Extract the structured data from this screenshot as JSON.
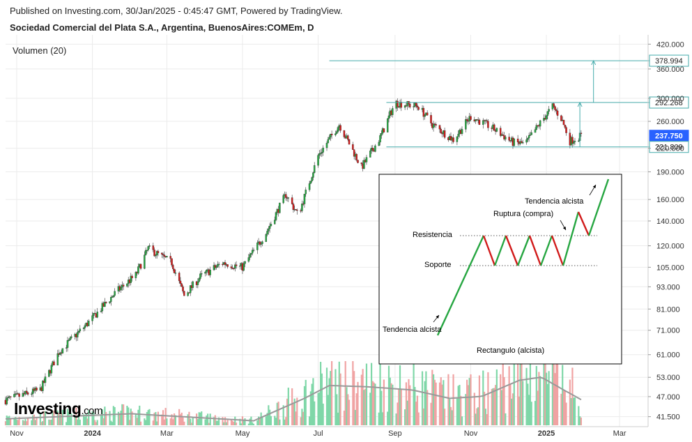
{
  "header": {
    "published": "Published on Investing.com, 30/Jan/2025 - 0:45:47 GMT, Powered by TradingView.",
    "instrument": "Sociedad Comercial del Plata S.A., Argentina, BuenosAires:COMEm, D"
  },
  "volume_label": "Volumen (20)",
  "logo": {
    "main": "Investing",
    "suffix": ".com"
  },
  "chart_data": {
    "type": "candlestick",
    "x_axis": {
      "tick_labels": [
        "Nov",
        "2024",
        "Mar",
        "May",
        "Jul",
        "Sep",
        "Nov",
        "2025",
        "Mar"
      ],
      "bold_labels": [
        "2024",
        "2025"
      ],
      "dates": [
        "2023-11-01",
        "2024-01-01",
        "2024-03-01",
        "2024-05-01",
        "2024-07-01",
        "2024-09-01",
        "2024-11-01",
        "2025-01-01",
        "2025-03-01"
      ]
    },
    "y_axis": {
      "scale": "log",
      "range": [
        39.0,
        445.0
      ],
      "tick_labels": [
        "420.000",
        "360.000",
        "300.000",
        "260.000",
        "220.000",
        "190.000",
        "160.000",
        "140.000",
        "120.000",
        "105.000",
        "93.000",
        "81.000",
        "71.000",
        "61.000",
        "53.000",
        "47.000",
        "41.500"
      ],
      "tick_values": [
        420,
        360,
        300,
        260,
        220,
        190,
        160,
        140,
        120,
        105,
        93,
        81,
        71,
        61,
        53,
        47,
        41.5
      ]
    },
    "grid": true,
    "price_key_points": [
      {
        "date": "2023-10-23",
        "close": 46
      },
      {
        "date": "2023-11-20",
        "close": 49
      },
      {
        "date": "2023-12-05",
        "close": 62
      },
      {
        "date": "2023-12-28",
        "close": 74
      },
      {
        "date": "2024-01-20",
        "close": 90
      },
      {
        "date": "2024-02-05",
        "close": 100
      },
      {
        "date": "2024-02-15",
        "close": 118
      },
      {
        "date": "2024-03-05",
        "close": 108
      },
      {
        "date": "2024-03-15",
        "close": 88
      },
      {
        "date": "2024-03-28",
        "close": 99
      },
      {
        "date": "2024-04-15",
        "close": 108
      },
      {
        "date": "2024-05-01",
        "close": 105
      },
      {
        "date": "2024-05-20",
        "close": 130
      },
      {
        "date": "2024-06-05",
        "close": 165
      },
      {
        "date": "2024-06-15",
        "close": 145
      },
      {
        "date": "2024-07-01",
        "close": 210
      },
      {
        "date": "2024-07-18",
        "close": 255
      },
      {
        "date": "2024-07-28",
        "close": 220
      },
      {
        "date": "2024-08-05",
        "close": 195
      },
      {
        "date": "2024-08-20",
        "close": 235
      },
      {
        "date": "2024-09-01",
        "close": 292
      },
      {
        "date": "2024-09-20",
        "close": 285
      },
      {
        "date": "2024-10-01",
        "close": 255
      },
      {
        "date": "2024-10-18",
        "close": 232
      },
      {
        "date": "2024-11-01",
        "close": 268
      },
      {
        "date": "2024-11-18",
        "close": 250
      },
      {
        "date": "2024-12-05",
        "close": 228
      },
      {
        "date": "2024-12-15",
        "close": 226
      },
      {
        "date": "2024-12-28",
        "close": 260
      },
      {
        "date": "2025-01-06",
        "close": 285
      },
      {
        "date": "2025-01-13",
        "close": 265
      },
      {
        "date": "2025-01-20",
        "close": 230
      },
      {
        "date": "2025-01-29",
        "close": 237.75
      }
    ],
    "price_labels": [
      {
        "text": "378.994",
        "value": 378.994,
        "style": "outline"
      },
      {
        "text": "292.268",
        "value": 292.268,
        "style": "outline"
      },
      {
        "text": "237.750",
        "value": 237.75,
        "style": "filled"
      },
      {
        "text": "221.809",
        "value": 221.809,
        "style": "outline"
      }
    ],
    "annotation_lines": [
      {
        "value": 378.994,
        "from": "2024-07-10",
        "to": "2025-03-25"
      },
      {
        "value": 292.268,
        "from": "2024-08-25",
        "to": "2025-03-25"
      },
      {
        "value": 221.809,
        "from": "2024-08-25",
        "to": "2025-03-25"
      }
    ],
    "target_arrows": [
      {
        "date": "2025-01-28",
        "from": 221.809,
        "to": 292.268
      },
      {
        "date": "2025-02-08",
        "from": 292.268,
        "to": 378.994
      }
    ],
    "volume_ma_key_points": [
      {
        "date": "2023-10-23",
        "p": 0.1
      },
      {
        "date": "2024-02-01",
        "p": 0.18
      },
      {
        "date": "2024-05-10",
        "p": 0.07
      },
      {
        "date": "2024-06-20",
        "p": 0.42
      },
      {
        "date": "2024-07-10",
        "p": 0.62
      },
      {
        "date": "2024-08-10",
        "p": 0.6
      },
      {
        "date": "2024-09-15",
        "p": 0.55
      },
      {
        "date": "2024-10-15",
        "p": 0.42
      },
      {
        "date": "2024-11-10",
        "p": 0.45
      },
      {
        "date": "2024-12-10",
        "p": 0.7
      },
      {
        "date": "2024-12-28",
        "p": 0.75
      },
      {
        "date": "2025-01-15",
        "p": 0.55
      },
      {
        "date": "2025-01-29",
        "p": 0.4
      }
    ],
    "inset_diagram": {
      "labels": {
        "tendencia_top": "Tendencia alcista",
        "ruptura": "Ruptura (compra)",
        "resistencia": "Resistencia",
        "soporte": "Soporte",
        "tendencia_bottom": "Tendencia alcista",
        "rectangulo": "Rectangulo (alcista)"
      }
    },
    "colors": {
      "up": "#26a641",
      "down": "#d11a1a",
      "vol_up": "#7fd7a8",
      "vol_down": "#f0a3a3",
      "annotation": "#44aaaa",
      "grid": "#ebebeb",
      "current_price_bg": "#2962ff",
      "vol_ma": "#999999"
    }
  }
}
